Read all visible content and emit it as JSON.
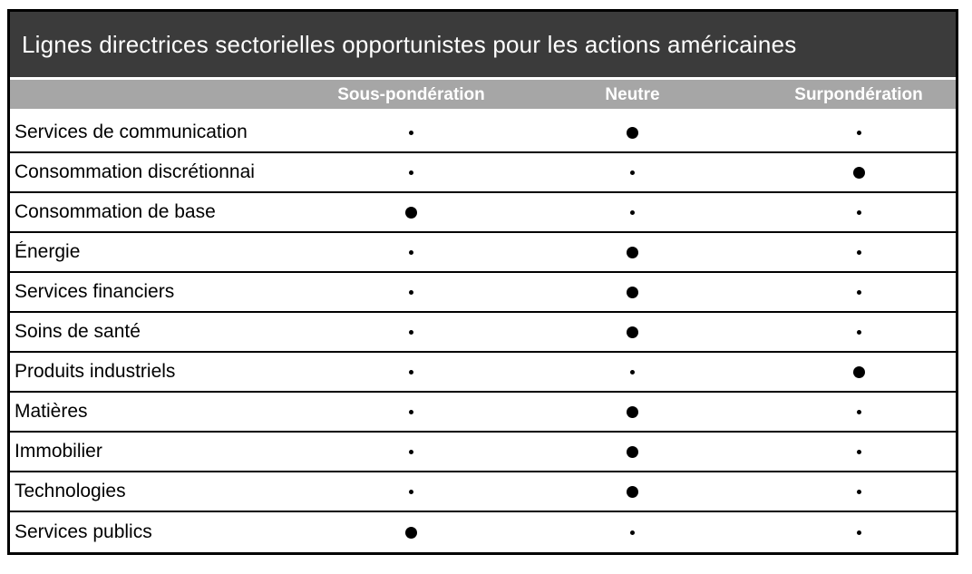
{
  "colors": {
    "title_bar_bg": "#3b3b3b",
    "title_text": "#ffffff",
    "header_bg": "#a6a6a6",
    "header_text": "#ffffff",
    "body_bg": "#ffffff",
    "body_text": "#000000",
    "border": "#000000",
    "dot": "#000000"
  },
  "chart_data": {
    "type": "table",
    "title": "Lignes directrices sectorielles opportunistes pour les actions américaines",
    "columns": [
      "Sous-pondération",
      "Neutre",
      "Surpondération"
    ],
    "marker_large": "position sélectionnée (grand point)",
    "marker_small": "position non sélectionnée (petit point)",
    "rows": [
      {
        "label": "Services de communication",
        "position": "Neutre",
        "markers": [
          "small",
          "large",
          "small"
        ]
      },
      {
        "label": "Consommation discrétionnai",
        "position": "Surpondération",
        "markers": [
          "small",
          "small",
          "large"
        ]
      },
      {
        "label": "Consommation de base",
        "position": "Sous-pondération",
        "markers": [
          "large",
          "small",
          "small"
        ]
      },
      {
        "label": "Énergie",
        "position": "Neutre",
        "markers": [
          "small",
          "large",
          "small"
        ]
      },
      {
        "label": "Services financiers",
        "position": "Neutre",
        "markers": [
          "small",
          "large",
          "small"
        ]
      },
      {
        "label": "Soins de santé",
        "position": "Neutre",
        "markers": [
          "small",
          "large",
          "small"
        ]
      },
      {
        "label": "Produits industriels",
        "position": "Surpondération",
        "markers": [
          "small",
          "small",
          "large"
        ]
      },
      {
        "label": "Matières",
        "position": "Neutre",
        "markers": [
          "small",
          "large",
          "small"
        ]
      },
      {
        "label": "Immobilier",
        "position": "Neutre",
        "markers": [
          "small",
          "large",
          "small"
        ]
      },
      {
        "label": "Technologies",
        "position": "Neutre",
        "markers": [
          "small",
          "large",
          "small"
        ]
      },
      {
        "label": "Services publics",
        "position": "Sous-pondération",
        "markers": [
          "large",
          "small",
          "small"
        ]
      }
    ]
  }
}
